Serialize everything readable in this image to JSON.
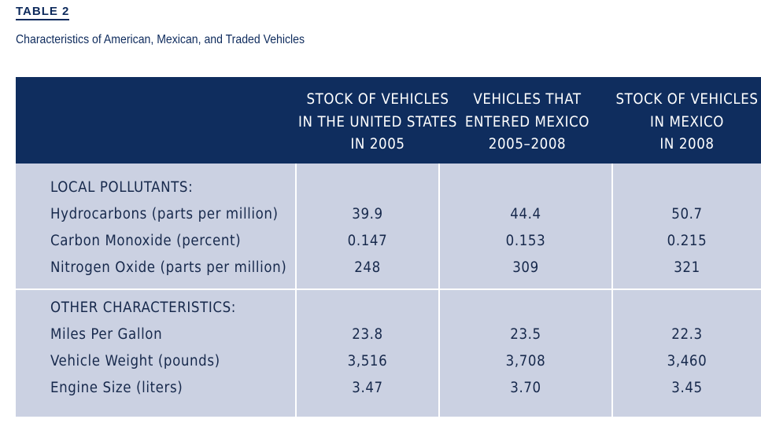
{
  "table_label": "TABLE 2",
  "caption": "Characteristics of American, Mexican, and Traded Vehicles",
  "columns": [
    {
      "lines": [
        "STOCK OF VEHICLES",
        "IN THE UNITED STATES",
        "IN 2005"
      ]
    },
    {
      "lines": [
        "VEHICLES THAT",
        "ENTERED MEXICO",
        "2005–2008"
      ]
    },
    {
      "lines": [
        "STOCK OF VEHICLES",
        "IN MEXICO",
        "IN 2008"
      ]
    }
  ],
  "sections": [
    {
      "title": "LOCAL POLLUTANTS:",
      "rows": [
        {
          "label": "Hydrocarbons (parts per million)",
          "values": [
            "39.9",
            "44.4",
            "50.7"
          ]
        },
        {
          "label": "Carbon Monoxide (percent)",
          "values": [
            "0.147",
            "0.153",
            "0.215"
          ]
        },
        {
          "label": "Nitrogen Oxide (parts per million)",
          "values": [
            "248",
            "309",
            "321"
          ]
        }
      ]
    },
    {
      "title": "OTHER CHARACTERISTICS:",
      "rows": [
        {
          "label": "Miles Per Gallon",
          "values": [
            "23.8",
            "23.5",
            "22.3"
          ]
        },
        {
          "label": "Vehicle Weight (pounds)",
          "values": [
            "3,516",
            "3,708",
            "3,460"
          ]
        },
        {
          "label": "Engine Size (liters)",
          "values": [
            "3.47",
            "3.70",
            "3.45"
          ]
        }
      ]
    }
  ]
}
